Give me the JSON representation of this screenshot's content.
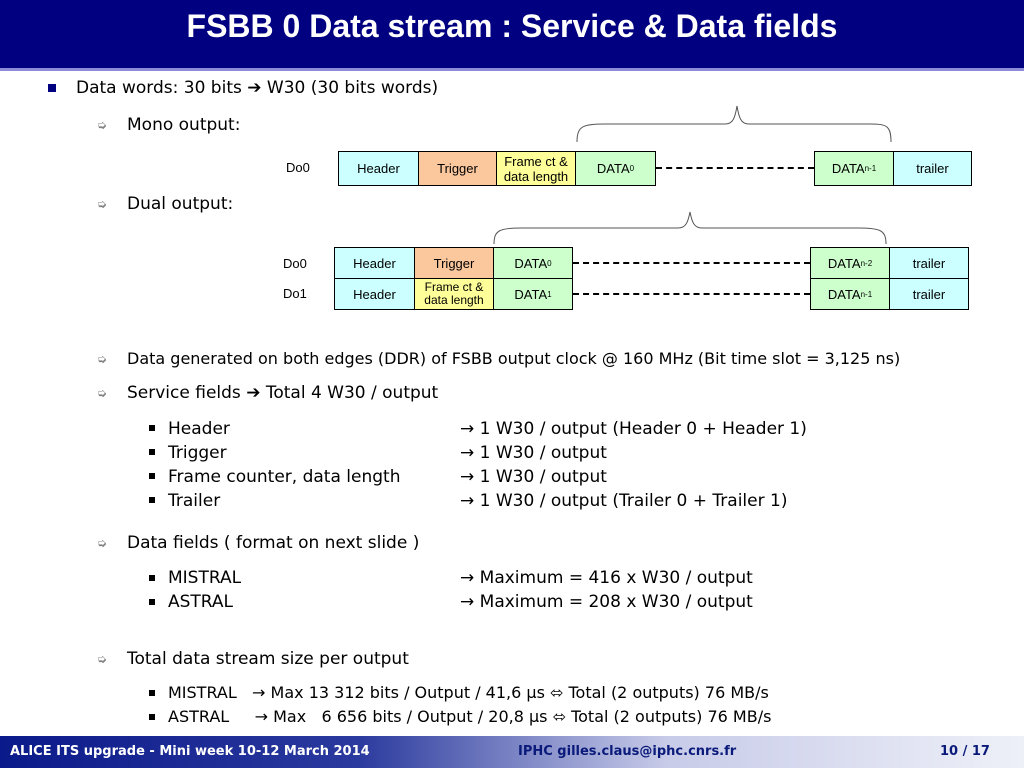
{
  "title": "FSBB 0 Data stream : Service & Data fields",
  "bullets": {
    "data_words_a": "Data words: 30 bits",
    "arrow_glyph": "➔",
    "data_words_b": "W30 (30 bits words)",
    "mono": "Mono output:",
    "dual": "Dual output:",
    "ddr": "Data generated on both edges (DDR) of FSBB output clock @ 160 MHz (Bit time slot = 3,125 ns)",
    "service_a": "Service fields",
    "service_b": "Total 4 W30 / output",
    "data_fields": "Data fields ( format on next slide )",
    "total": "Total data stream size per output"
  },
  "sub_arrow_glyph": "➭",
  "service_items": [
    {
      "label": "Header",
      "value": "→ 1 W30 / output (Header 0 + Header 1)"
    },
    {
      "label": "Trigger",
      "value": "→ 1 W30 / output"
    },
    {
      "label": "Frame counter, data length",
      "value": "→ 1 W30 / output"
    },
    {
      "label": "Trailer",
      "value": "→ 1 W30 / output (Trailer 0 + Trailer 1)"
    }
  ],
  "data_items": [
    {
      "label": "MISTRAL",
      "value": "→ Maximum = 416 x W30 / output"
    },
    {
      "label": "ASTRAL",
      "value": "→ Maximum = 208 x W30 / output"
    }
  ],
  "total_items": [
    {
      "text": "MISTRAL   → Max 13 312 bits / Output / 41,6 µs ⬄ Total (2 outputs) 76 MB/s"
    },
    {
      "text": "ASTRAL     → Max   6 656 bits / Output / 20,8 µs ⬄ Total (2 outputs) 76 MB/s"
    }
  ],
  "diagram": {
    "do0": "Do0",
    "do1": "Do1",
    "header": "Header",
    "trigger": "Trigger",
    "frame_ct": "Frame ct &",
    "data_length": "data length",
    "data": "DATA",
    "sub0": "0",
    "sub1": "1",
    "subn1": "n-1",
    "subn2": "n-2",
    "trailer": "trailer"
  },
  "footer": {
    "left": "ALICE ITS upgrade - Mini week 10-12 March 2014",
    "center": "IPHC  gilles.claus@iphc.cnrs.fr",
    "right": "10 / 17"
  },
  "colors": {
    "title_bg": "#000080",
    "header_box": "#ccffff",
    "trigger_box": "#fbc89e",
    "frame_box": "#ffff99",
    "data_box": "#ccffcc"
  }
}
